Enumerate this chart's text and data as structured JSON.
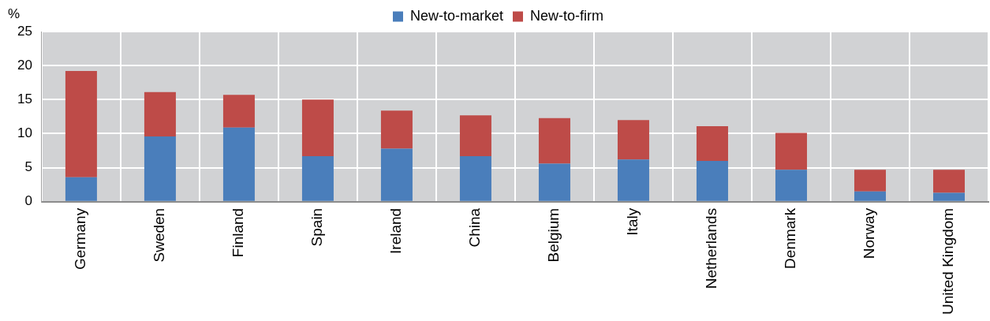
{
  "chart_data": {
    "type": "bar",
    "stacked": true,
    "ylabel": "%",
    "categories": [
      "Germany",
      "Sweden",
      "Finland",
      "Spain",
      "Ireland",
      "China",
      "Belgium",
      "Italy",
      "Netherlands",
      "Denmark",
      "Norway",
      "United Kingdom"
    ],
    "series": [
      {
        "name": "New-to-market",
        "color": "#4a7ebb",
        "values": [
          3.6,
          9.6,
          10.9,
          6.7,
          7.8,
          6.7,
          5.6,
          6.2,
          6.0,
          4.7,
          1.5,
          1.3
        ]
      },
      {
        "name": "New-to-firm",
        "color": "#be4b48",
        "values": [
          15.6,
          6.5,
          4.8,
          8.3,
          5.6,
          6.0,
          6.7,
          5.8,
          5.1,
          5.4,
          3.2,
          3.4
        ]
      }
    ],
    "ylim": [
      0,
      25
    ],
    "yticks": [
      0,
      5,
      10,
      15,
      20,
      25
    ],
    "grid": true,
    "legend": "top"
  }
}
